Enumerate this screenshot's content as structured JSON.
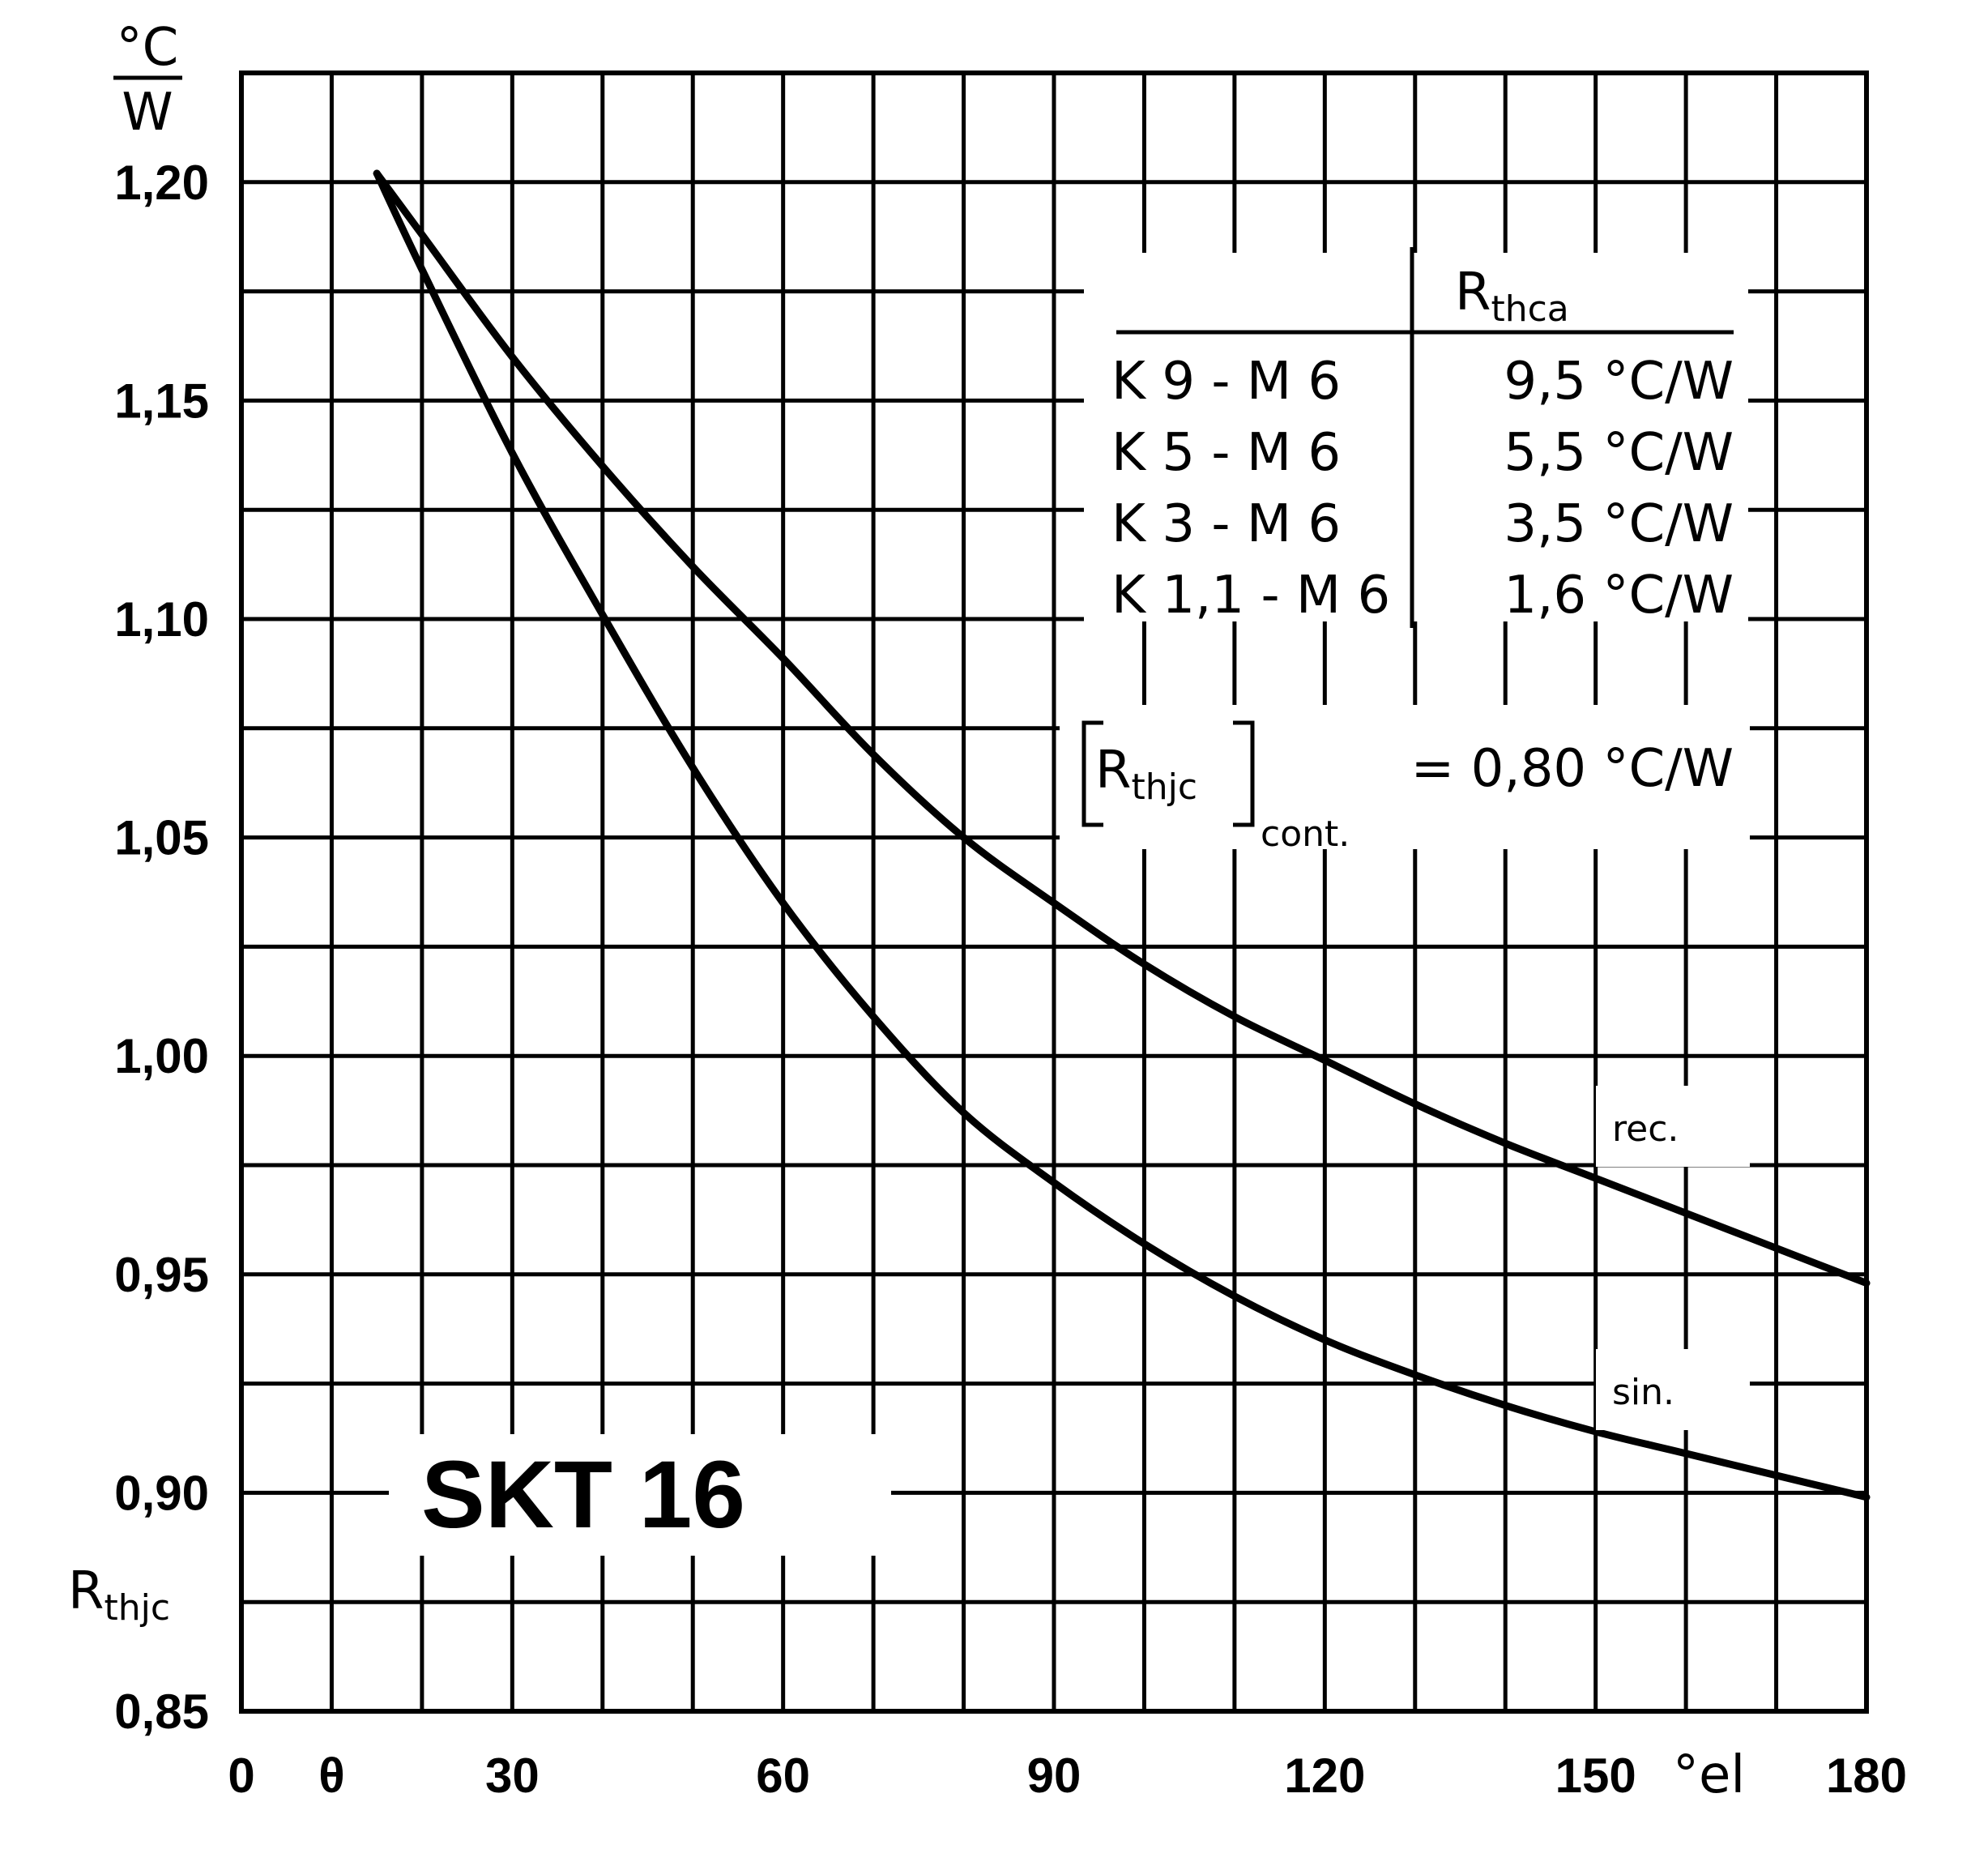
{
  "chart_data": {
    "type": "line",
    "title": "SKT 16",
    "ylabel_unit_num": "°C",
    "ylabel_unit_den": "W",
    "ylabel_symbol": "R",
    "ylabel_symbol_sub": "thjc",
    "xlabel_unit": "°el",
    "xlim": [
      0,
      180
    ],
    "ylim": [
      0.85,
      1.225
    ],
    "x_ticks": [
      "0",
      "30",
      "60",
      "90",
      "120",
      "150",
      "180"
    ],
    "x_tick_values": [
      0,
      30,
      60,
      90,
      120,
      150,
      180
    ],
    "x_theta_label": "θ",
    "x_theta_value": 10,
    "y_ticks": [
      "0,85",
      "0,90",
      "0,95",
      "1,00",
      "1,05",
      "1,10",
      "1,15",
      "1,20"
    ],
    "y_tick_values": [
      0.85,
      0.9,
      0.95,
      1.0,
      1.05,
      1.1,
      1.15,
      1.2
    ],
    "grid": true,
    "grid_x_step": 10,
    "grid_y_step": 0.025,
    "series": [
      {
        "name": "rec.",
        "x": [
          15,
          20,
          30,
          40,
          50,
          60,
          70,
          80,
          90,
          100,
          110,
          120,
          130,
          140,
          150,
          160,
          170,
          180
        ],
        "y": [
          1.202,
          1.188,
          1.16,
          1.135,
          1.112,
          1.091,
          1.069,
          1.05,
          1.035,
          1.021,
          1.009,
          0.999,
          0.989,
          0.98,
          0.972,
          0.964,
          0.956,
          0.948
        ]
      },
      {
        "name": "sin.",
        "x": [
          15,
          20,
          30,
          40,
          50,
          60,
          70,
          80,
          90,
          100,
          110,
          120,
          130,
          140,
          150,
          160,
          170,
          180
        ],
        "y": [
          1.202,
          1.18,
          1.138,
          1.101,
          1.066,
          1.035,
          1.009,
          0.987,
          0.971,
          0.957,
          0.945,
          0.935,
          0.927,
          0.92,
          0.914,
          0.909,
          0.904,
          0.899
        ]
      }
    ],
    "rthca_table": {
      "header": "R",
      "header_sub": "thca",
      "rows": [
        {
          "heatsink": "K 9 - M 6",
          "value": "9,5 °C/W"
        },
        {
          "heatsink": "K 5 - M 6",
          "value": "5,5 °C/W"
        },
        {
          "heatsink": "K 3 - M 6",
          "value": "3,5 °C/W"
        },
        {
          "heatsink": "K 1,1 - M 6",
          "value": "1,6 °C/W"
        }
      ]
    },
    "rthjc_cont": {
      "symbol": "R",
      "symbol_sub": "thjc",
      "suffix": "cont.",
      "value": "= 0,80 °C/W"
    }
  }
}
